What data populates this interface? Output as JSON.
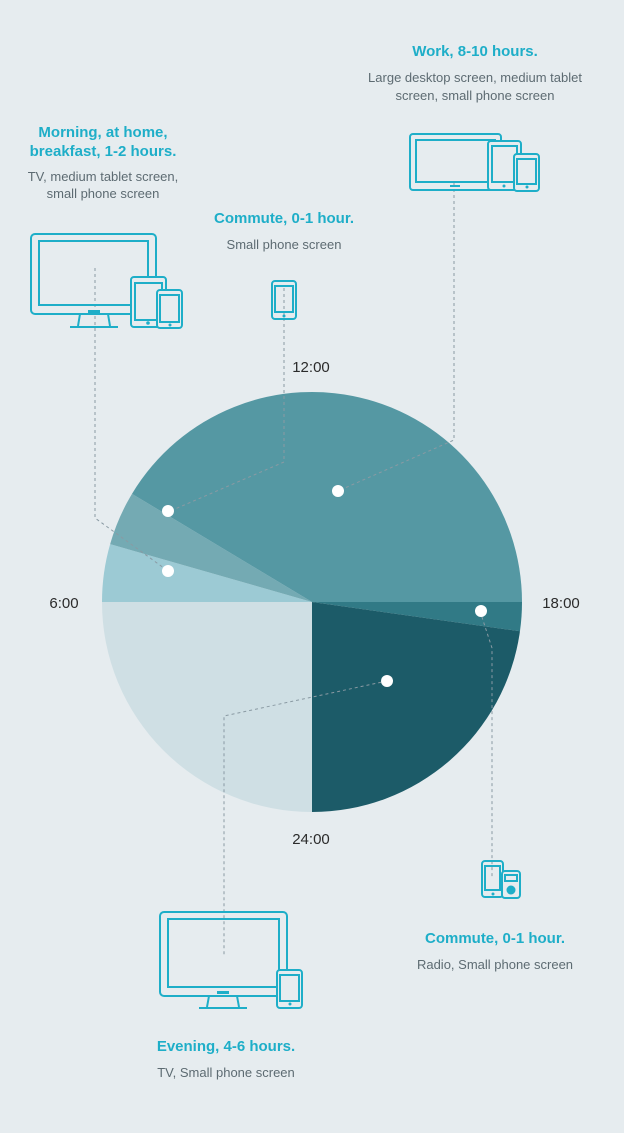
{
  "chart_data": {
    "type": "pie",
    "clock_labels": [
      "12:00",
      "18:00",
      "24:00",
      "6:00"
    ],
    "segments": [
      {
        "title": "Morning, at home, breakfast, 1-2 hours.",
        "subtitle": "TV, medium tablet screen, small phone screen",
        "color": "#9ccad4"
      },
      {
        "title": "Commute, 0-1 hour.",
        "subtitle": "Small phone screen",
        "color": "#74aab3"
      },
      {
        "title": "Work, 8-10 hours.",
        "subtitle": "Large desktop screen, medium tablet screen, small phone screen",
        "color": "#5598a3"
      },
      {
        "title": "Commute, 0-1 hour.",
        "subtitle": "Radio, Small phone screen",
        "color": "#317a86"
      },
      {
        "title": "Evening, 4-6 hours.",
        "subtitle": "TV, Small phone screen",
        "color": "#1c5b68"
      },
      {
        "title": "",
        "subtitle": "",
        "color": "#cfdfe4"
      }
    ]
  },
  "labels": {
    "morning": {
      "title_line1": "Morning, at home,",
      "title_line2": "breakfast, 1-2 hours.",
      "sub_line1": "TV, medium tablet screen,",
      "sub_line2": "small phone screen",
      "icon": "tv-tablet-phone-icon"
    },
    "commute_am": {
      "title": "Commute, 0-1 hour.",
      "sub": "Small phone screen",
      "icon": "phone-icon"
    },
    "work": {
      "title": "Work, 8-10 hours.",
      "sub_line1": "Large desktop screen, medium tablet",
      "sub_line2": "screen, small phone screen",
      "icon": "desktop-tablet-phone-icon"
    },
    "commute_pm": {
      "title": "Commute, 0-1 hour.",
      "sub": "Radio, Small phone screen",
      "icon": "phone-radio-icon"
    },
    "evening": {
      "title": "Evening, 4-6 hours.",
      "sub": "TV, Small phone screen",
      "icon": "tv-phone-icon"
    }
  },
  "ticks": {
    "top": "12:00",
    "right": "18:00",
    "bottom": "24:00",
    "left": "6:00"
  }
}
